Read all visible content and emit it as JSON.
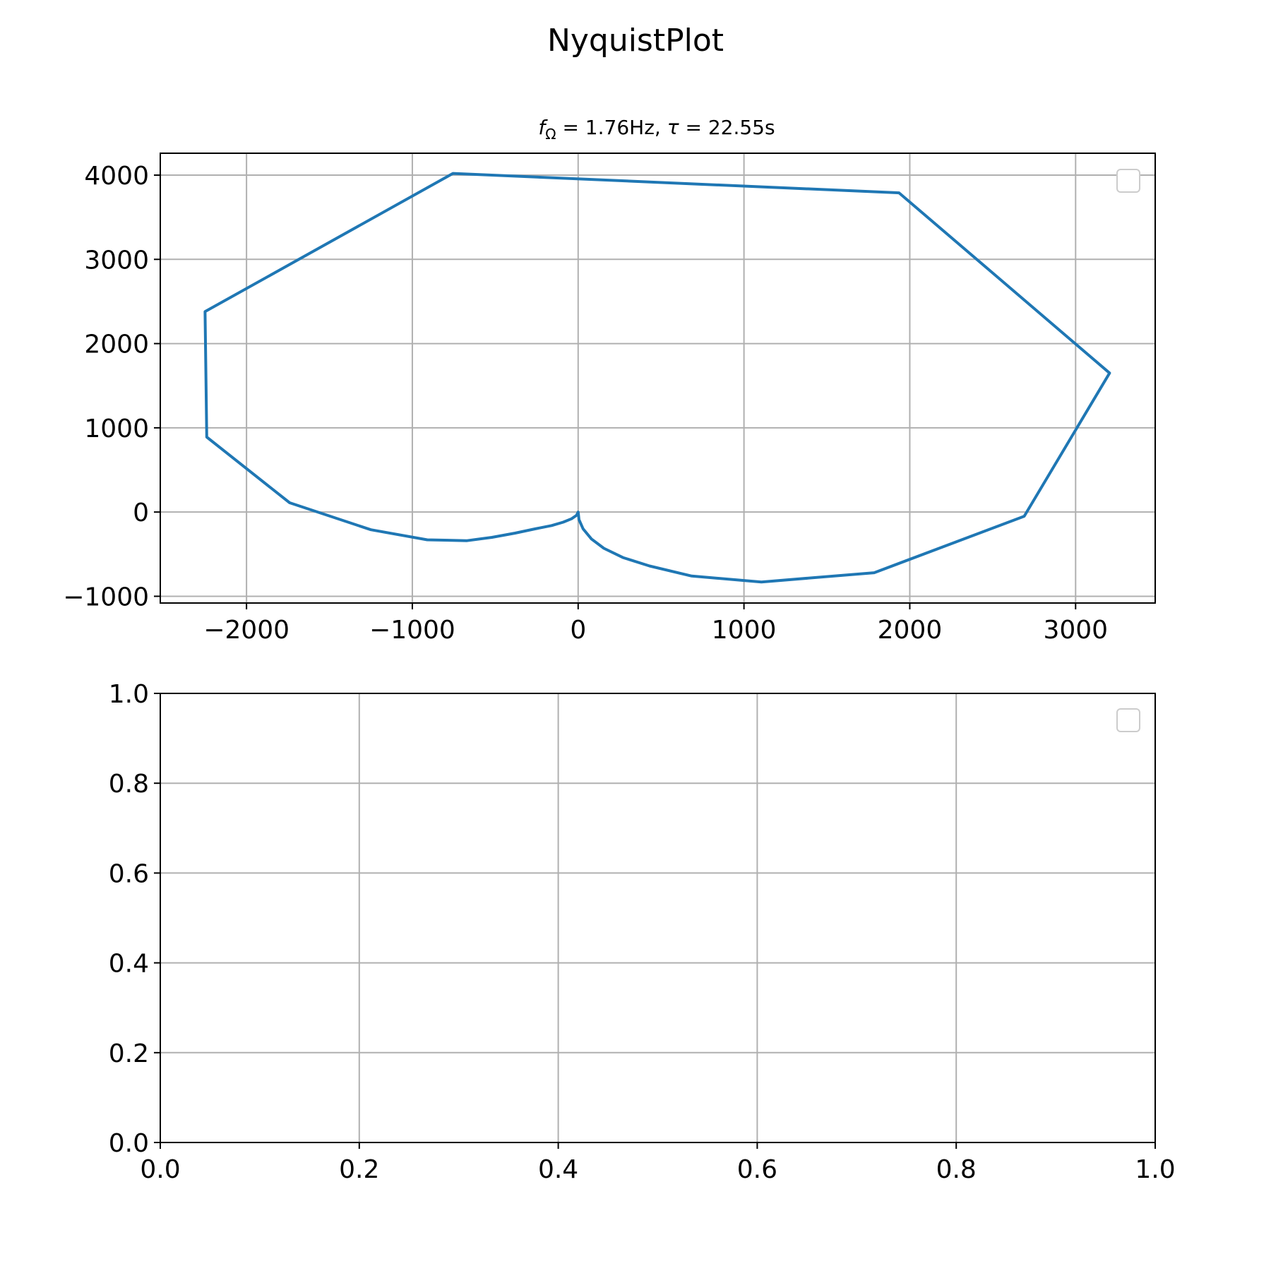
{
  "figure": {
    "suptitle": "NyquistPlot"
  },
  "chart_data": [
    {
      "type": "line",
      "subtitle_parts": {
        "f": "f",
        "f_sub": "Ω",
        "f_value": " = 1.76Hz, ",
        "tau": "τ",
        "tau_value": " = 22.55s"
      },
      "xlim": [
        -2520,
        3480
      ],
      "ylim": [
        -1080,
        4260
      ],
      "xticks": [
        -2000,
        -1000,
        0,
        1000,
        2000,
        3000
      ],
      "xtick_labels": [
        "−2000",
        "−1000",
        "0",
        "1000",
        "2000",
        "3000"
      ],
      "yticks": [
        -1000,
        0,
        1000,
        2000,
        3000,
        4000
      ],
      "ytick_labels": [
        "−1000",
        "0",
        "1000",
        "2000",
        "3000",
        "4000"
      ],
      "grid": true,
      "legend": "top-right, empty",
      "series": [
        {
          "color": "#1f77b4",
          "x": [
            0,
            -10,
            -40,
            -90,
            -160,
            -260,
            -380,
            -520,
            -670,
            -910,
            -1250,
            -1740,
            -2240,
            -2250,
            -755,
            1935,
            3205,
            2690,
            1785,
            1105,
            685,
            430,
            270,
            155,
            80,
            30,
            5,
            0
          ],
          "y": [
            0,
            -40,
            -80,
            -120,
            -160,
            -200,
            -250,
            -300,
            -340,
            -330,
            -210,
            110,
            890,
            2380,
            4020,
            3790,
            1650,
            -50,
            -720,
            -830,
            -760,
            -640,
            -540,
            -430,
            -320,
            -200,
            -90,
            0
          ]
        }
      ]
    },
    {
      "type": "line",
      "xlim": [
        0,
        1
      ],
      "ylim": [
        0,
        1
      ],
      "xticks": [
        0,
        0.2,
        0.4,
        0.6,
        0.8,
        1
      ],
      "xtick_labels": [
        "0.0",
        "0.2",
        "0.4",
        "0.6",
        "0.8",
        "1.0"
      ],
      "yticks": [
        0,
        0.2,
        0.4,
        0.6,
        0.8,
        1
      ],
      "ytick_labels": [
        "0.0",
        "0.2",
        "0.4",
        "0.6",
        "0.8",
        "1.0"
      ],
      "grid": true,
      "legend": "top-right, empty",
      "series": []
    }
  ]
}
